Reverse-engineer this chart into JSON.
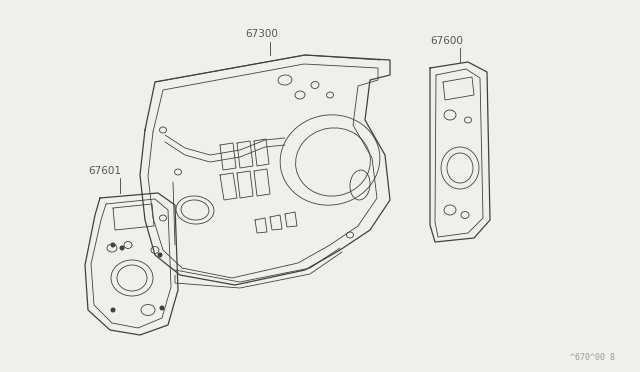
{
  "bg_color": "#f0f0eb",
  "line_color": "#404040",
  "label_color": "#555555",
  "watermark": "^670^00 8",
  "watermark_color": "#999999",
  "figsize": [
    6.4,
    3.72
  ],
  "dpi": 100
}
